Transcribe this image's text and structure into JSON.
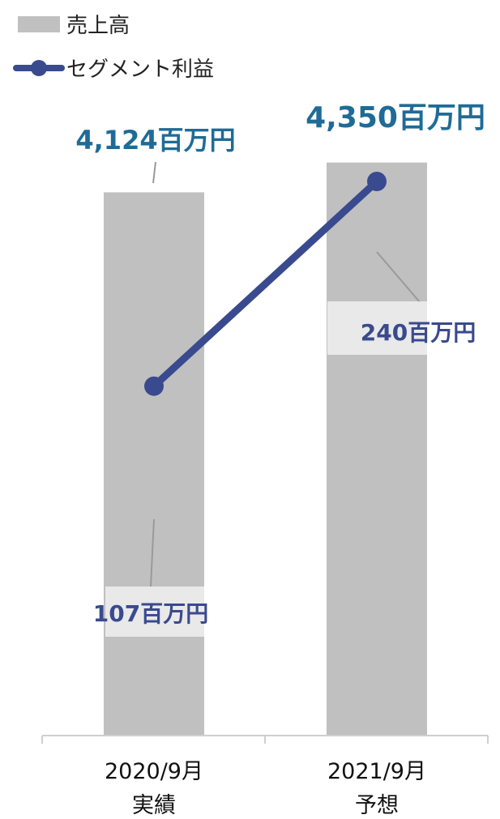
{
  "chart_data": {
    "type": "bar+line",
    "categories": [
      {
        "line1": "2020/9月",
        "line2": "実績"
      },
      {
        "line1": "2021/9月",
        "line2": "予想"
      }
    ],
    "series": [
      {
        "name": "売上高",
        "kind": "bar",
        "color": "#c0c0c0",
        "values": [
          4124,
          4350
        ],
        "labels": [
          "4,124百万円",
          "4,350百万円"
        ],
        "label_color": "#1f6b96"
      },
      {
        "name": "セグメント利益",
        "kind": "line",
        "color": "#3a4a8e",
        "values": [
          107,
          240
        ],
        "labels": [
          "107百万円",
          "240百万円"
        ],
        "label_color": "#3a4a8e"
      }
    ],
    "bar_axis_range": [
      0,
      4600
    ],
    "line_axis_range": [
      -120,
      300
    ],
    "legend_position": "top-left",
    "grid": false
  }
}
